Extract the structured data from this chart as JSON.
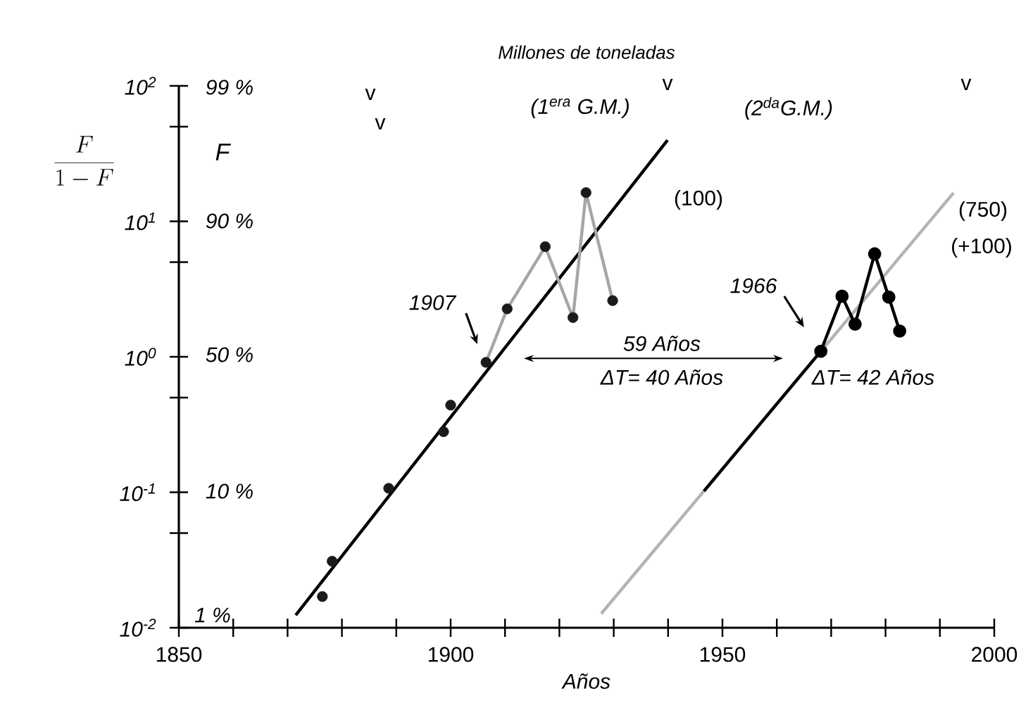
{
  "chart_data": {
    "type": "line",
    "title": "Millones de toneladas",
    "xlabel": "Años",
    "ylabel": "\\frac{F}{1 - F}",
    "log": true,
    "xlim": [
      1850,
      2000
    ],
    "xticks": [
      1850,
      {
        "value": 1860,
        "label": null
      },
      {
        "value": 1870,
        "label": null
      },
      {
        "value": 1880,
        "label": null
      },
      {
        "value": 1890,
        "label": null
      },
      1900,
      {
        "value": 1910,
        "label": null
      },
      {
        "value": 1920,
        "label": null
      },
      {
        "value": 1930,
        "label": null
      },
      {
        "value": 1940,
        "label": null
      },
      1950,
      {
        "value": 1960,
        "label": null
      },
      {
        "value": 1970,
        "label": null
      },
      {
        "value": 1980,
        "label": null
      },
      {
        "value": 1990,
        "label": null
      },
      2000
    ],
    "ylim": [
      0.01,
      100
    ],
    "yticks": [
      {
        "value": 0.01,
        "label": "10$^{-2}$"
      },
      {
        "value": 0.05,
        "label": null
      },
      {
        "value": 0.1,
        "label": "10$^{-1}$"
      },
      {
        "value": 0.5,
        "label": null
      },
      {
        "value": 1,
        "label": "10$^{0}$"
      },
      {
        "value": 5,
        "label": null
      },
      {
        "value": 10,
        "label": "10$^{1}$"
      },
      {
        "value": 50,
        "label": null
      },
      {
        "value": 100,
        "label": "10$^{2}$"
      }
    ],
    "series": [
      {
        "color": "#000000",
        "x": [
          1871.5,
          1939.9
        ],
        "values": [
          0.0124,
          39.8
        ]
      },
      {
        "color": "#b3b3b3",
        "x": [
          1927.7,
          1992.5
        ],
        "values": [
          0.0127,
          16.2
        ]
      },
      {
        "color": "#a6a6a6",
        "x": [
          1906.5,
          1910.4,
          1917.4,
          1922.5,
          1924.9,
          1929.8
        ],
        "values": [
          0.91,
          2.26,
          6.5,
          1.95,
          16.3,
          2.6
        ]
      },
      {
        "color": "#000000",
        "x": [
          1946.6,
          1968.1
        ],
        "values": [
          0.102,
          1.1
        ]
      },
      {
        "color": "#000000",
        "marker": "circle",
        "x": [
          1968.1,
          1972.0,
          1974.4,
          1978.0,
          1980.6,
          1982.6
        ],
        "values": [
          1.1,
          2.8,
          1.74,
          5.75,
          2.76,
          1.55
        ]
      },
      {
        "type": "scatter",
        "color": "#1a1a1a",
        "marker": "circle",
        "x": [
          1876.4,
          1878.2,
          1888.6,
          1898.7,
          1900.0,
          1906.5,
          1910.4,
          1917.4,
          1922.5,
          1924.9,
          1929.8
        ],
        "values": [
          0.017,
          0.031,
          0.107,
          0.28,
          0.44,
          0.91,
          2.26,
          6.5,
          1.95,
          16.3,
          2.6
        ]
      }
    ],
    "annotations": [
      "v",
      "v",
      "(1$^{era}$ G.M.)",
      "v",
      "(2$^{da}$G.M.)",
      "v",
      "(100)",
      "(750)",
      "(+100)",
      "1907",
      "1966",
      "59 Años",
      "ΔT= 40 Años",
      "ΔT= 42 Años",
      "99 %",
      "90 %",
      "50 %",
      "10 %",
      "1 %",
      "F"
    ]
  }
}
